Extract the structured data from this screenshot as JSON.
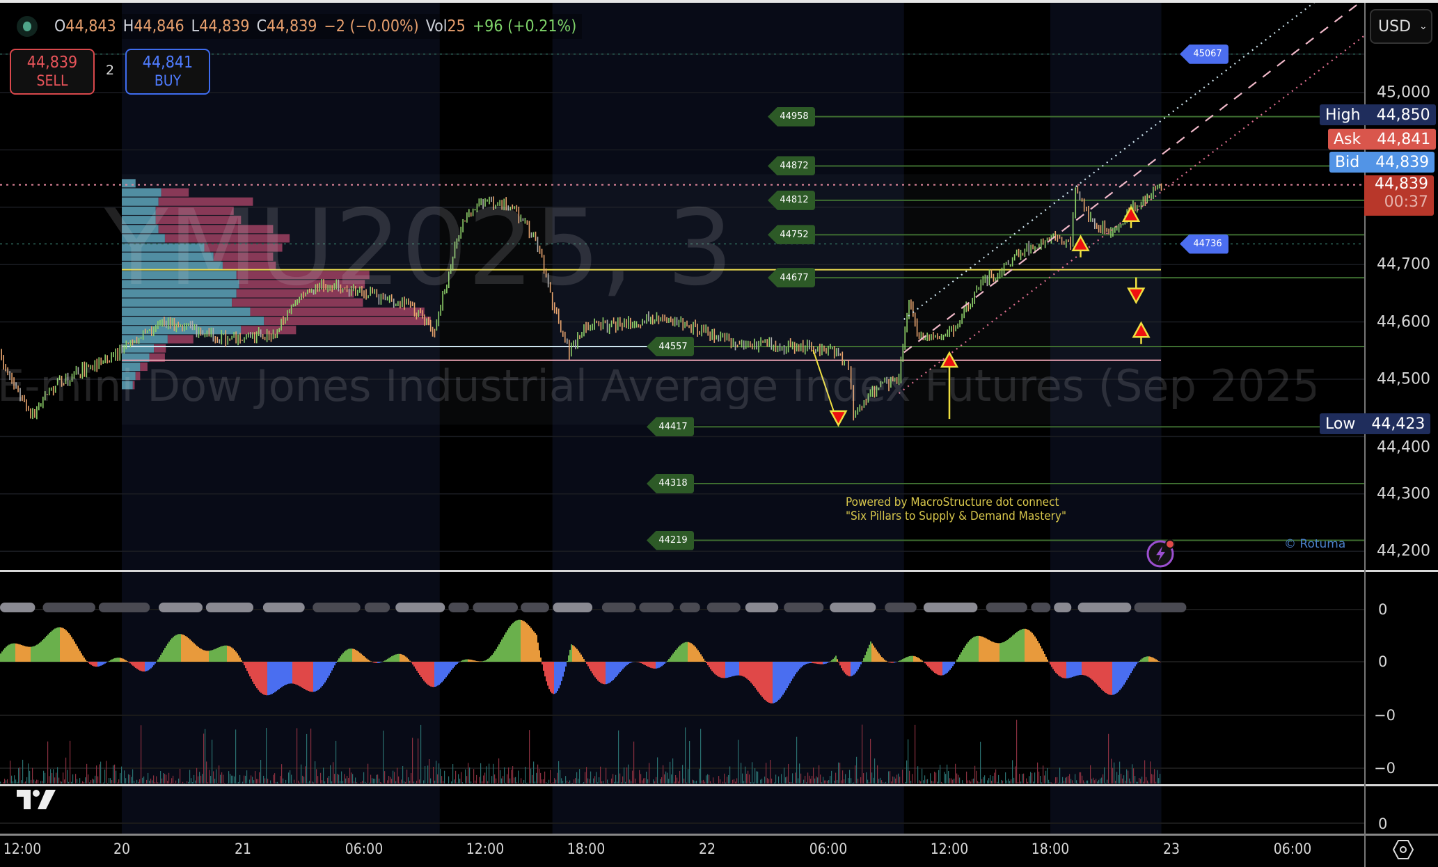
{
  "legend": {
    "open_label": "O",
    "open": "44,843",
    "high_label": "H",
    "high": "44,846",
    "low_label": "L",
    "low": "44,839",
    "close_label": "C",
    "close": "44,839",
    "change": "−2 (−0.00%)",
    "vol_label": "Vol",
    "vol": "25",
    "vol_change": "+96 (+0.21%)"
  },
  "trade": {
    "sell_price": "44,839",
    "sell_label": "SELL",
    "qty": "2",
    "buy_price": "44,841",
    "buy_label": "BUY"
  },
  "currency": "USD",
  "watermark": {
    "symbol": "YMU2025, 3",
    "description": "E-mini Dow Jones Industrial Average Index Futures (Sep 2025)"
  },
  "price_axis": {
    "ticks": [
      {
        "label": "45,000",
        "value": 45000
      },
      {
        "label": "44,700",
        "value": 44700
      },
      {
        "label": "44,600",
        "value": 44600
      },
      {
        "label": "44,500",
        "value": 44500
      },
      {
        "label": "44,400",
        "value": 44400
      },
      {
        "label": "44,300",
        "value": 44300
      },
      {
        "label": "44,200",
        "value": 44200
      }
    ]
  },
  "price_tags": {
    "high": {
      "label": "High",
      "value": "44,850",
      "price": 44850
    },
    "ask": {
      "label": "Ask",
      "value": "44,841",
      "price": 44841
    },
    "bid": {
      "label": "Bid",
      "value": "44,839",
      "price": 44839
    },
    "last": {
      "value": "44,839",
      "countdown": "00:37",
      "price": 44839
    },
    "low": {
      "label": "Low",
      "value": "44,423",
      "price": 44423
    }
  },
  "levels": [
    {
      "label": "44958",
      "price": 44958,
      "tag_time": "22 03:00"
    },
    {
      "label": "44872",
      "price": 44872,
      "tag_time": "22 03:00"
    },
    {
      "label": "44812",
      "price": 44812,
      "tag_time": "22 03:00"
    },
    {
      "label": "44752",
      "price": 44752,
      "tag_time": "22 03:00"
    },
    {
      "label": "44677",
      "price": 44677,
      "tag_time": "22 03:00"
    },
    {
      "label": "44557",
      "price": 44557,
      "tag_time": "21 21:00"
    },
    {
      "label": "44417",
      "price": 44417,
      "tag_time": "21 21:00"
    },
    {
      "label": "44318",
      "price": 44318,
      "tag_time": "21 21:00"
    },
    {
      "label": "44219",
      "price": 44219,
      "tag_time": "21 21:00"
    }
  ],
  "alerts": [
    {
      "label": "45067",
      "price": 45067
    },
    {
      "label": "44736",
      "price": 44736
    }
  ],
  "zones": [
    {
      "price": 44691,
      "color": "#f0e050"
    },
    {
      "price": 44557,
      "color": "#cfe6f0"
    },
    {
      "price": 44533,
      "color": "#e8a0b0"
    }
  ],
  "volume_profile": {
    "top_price": 44843,
    "row_step": 16,
    "rows": [
      [
        15,
        0
      ],
      [
        43,
        30
      ],
      [
        40,
        103
      ],
      [
        37,
        85
      ],
      [
        37,
        93
      ],
      [
        40,
        125
      ],
      [
        47,
        136
      ],
      [
        90,
        85
      ],
      [
        100,
        65
      ],
      [
        110,
        58
      ],
      [
        125,
        145
      ],
      [
        128,
        137
      ],
      [
        125,
        128
      ],
      [
        120,
        143
      ],
      [
        140,
        190
      ],
      [
        155,
        182
      ],
      [
        130,
        60
      ],
      [
        50,
        28
      ],
      [
        35,
        13
      ],
      [
        30,
        17
      ],
      [
        20,
        8
      ],
      [
        15,
        5
      ],
      [
        12,
        2
      ]
    ]
  },
  "price_path": [
    [
      "19 09:00",
      44546
    ],
    [
      "19 13:00",
      44434
    ],
    [
      "19 16:00",
      44490
    ],
    [
      "19 20:00",
      44522
    ],
    [
      "19 23:00",
      44538
    ],
    [
      "20 08:00",
      44602
    ],
    [
      "20 14:00",
      44586
    ],
    [
      "20 21:00",
      44570
    ],
    [
      "21 01:30",
      44578
    ],
    [
      "21 02:30",
      44634
    ],
    [
      "21 04:00",
      44666
    ],
    [
      "21 06:00",
      44650
    ],
    [
      "21 08:00",
      44634
    ],
    [
      "21 09:30",
      44586
    ],
    [
      "21 10:30",
      44730
    ],
    [
      "21 11:00",
      44778
    ],
    [
      "21 12:00",
      44810
    ],
    [
      "21 13:30",
      44802
    ],
    [
      "21 15:00",
      44746
    ],
    [
      "21 16:00",
      44634
    ],
    [
      "21 17:00",
      44546
    ],
    [
      "21 18:00",
      44594
    ],
    [
      "21 20:00",
      44594
    ],
    [
      "21 21:30",
      44610
    ],
    [
      "21 23:00",
      44594
    ],
    [
      "22 01:30",
      44562
    ],
    [
      "22 03:30",
      44557
    ],
    [
      "22 06:00",
      44554
    ],
    [
      "22 07:00",
      44522
    ],
    [
      "22 07:15",
      44434
    ],
    [
      "22 08:30",
      44490
    ],
    [
      "22 09:30",
      44498
    ],
    [
      "22 10:00",
      44634
    ],
    [
      "22 10:30",
      44570
    ],
    [
      "22 12:15",
      44586
    ],
    [
      "22 14:00",
      44674
    ],
    [
      "22 15:00",
      44682
    ],
    [
      "22 16:00",
      44722
    ],
    [
      "22 18:15",
      44746
    ],
    [
      "22 19:00",
      44738
    ],
    [
      "22 19:15",
      44834
    ],
    [
      "22 20:00",
      44778
    ],
    [
      "22 21:00",
      44754
    ],
    [
      "22 22:00",
      44794
    ],
    [
      "22 23:30",
      44839
    ]
  ],
  "channel_lines": [
    {
      "style": "dotted",
      "color": "#cfe6f0",
      "start": "22 09:45",
      "p1": [
        "22 11:30",
        44652
      ],
      "p2": [
        "23 01:00",
        44992
      ]
    },
    {
      "style": "dashed",
      "color": "#f0b8c8",
      "start": "22 09:45",
      "p1": [
        "22 14:20",
        44660
      ],
      "p2": [
        "23 02:05",
        44961
      ]
    },
    {
      "style": "dotted",
      "color": "#e07090",
      "start": "22 09:30",
      "p1": [
        "22 16:50",
        44652
      ],
      "p2": [
        "23 02:05",
        44897
      ]
    }
  ],
  "signals": [
    {
      "dir": "up",
      "time": "22 12:00",
      "price": 44546
    },
    {
      "dir": "up",
      "time": "22 19:30",
      "price": 44749
    },
    {
      "dir": "up",
      "time": "22 22:00",
      "price": 44800
    },
    {
      "dir": "down",
      "time": "22 22:15",
      "price": 44634
    },
    {
      "dir": "up",
      "time": "22 22:30",
      "price": 44598
    },
    {
      "dir": "down",
      "time": "22 06:30",
      "price": 44420,
      "from": [
        "22 05:15",
        44551
      ]
    }
  ],
  "sessions": [
    [
      "20 00:00",
      "21 09:45"
    ],
    [
      "21 16:00",
      "22 09:45"
    ],
    [
      "22 18:00",
      "22 23:30"
    ]
  ],
  "annotation": {
    "line1": "Powered by MacroStructure dot connect",
    "line2": "\"Six Pillars to Supply & Demand Mastery\""
  },
  "credit": "© Rotuma",
  "indicator_axis": [
    "0",
    "0",
    "−0",
    "−0"
  ],
  "lower_axis": "0",
  "time_axis": [
    {
      "label": "12:00",
      "time": "19 12:00"
    },
    {
      "label": "20",
      "time": "20 00:00"
    },
    {
      "label": "21",
      "time": "21 00:00"
    },
    {
      "label": "06:00",
      "time": "21 06:00"
    },
    {
      "label": "12:00",
      "time": "21 12:00"
    },
    {
      "label": "18:00",
      "time": "21 18:00"
    },
    {
      "label": "22",
      "time": "22 00:00"
    },
    {
      "label": "06:00",
      "time": "22 06:00"
    },
    {
      "label": "12:00",
      "time": "22 12:00"
    },
    {
      "label": "18:00",
      "time": "22 18:00"
    },
    {
      "label": "23",
      "time": "23 00:00"
    },
    {
      "label": "06:00",
      "time": "23 06:00"
    }
  ],
  "icons": {
    "status": "market-status-dot",
    "logo": "tradingview-logo",
    "alert": "lightning-icon",
    "settings": "settings-hexagon-icon"
  },
  "colors": {
    "up": "#8fd16a",
    "down": "#e8a46e",
    "neutral": "#b0b0b0",
    "level": "#3e6e30",
    "level_tag": "#2d5a27",
    "alert_tag": "#4c6ef0",
    "high_tag": "#1f2d5c",
    "ask_tag": "#d9564c",
    "bid_tag": "#5294e6",
    "last_tag": "#b8372a",
    "profile_a": "#4f8fa3",
    "profile_b": "#8a3553",
    "session_bg": "#080b17"
  }
}
